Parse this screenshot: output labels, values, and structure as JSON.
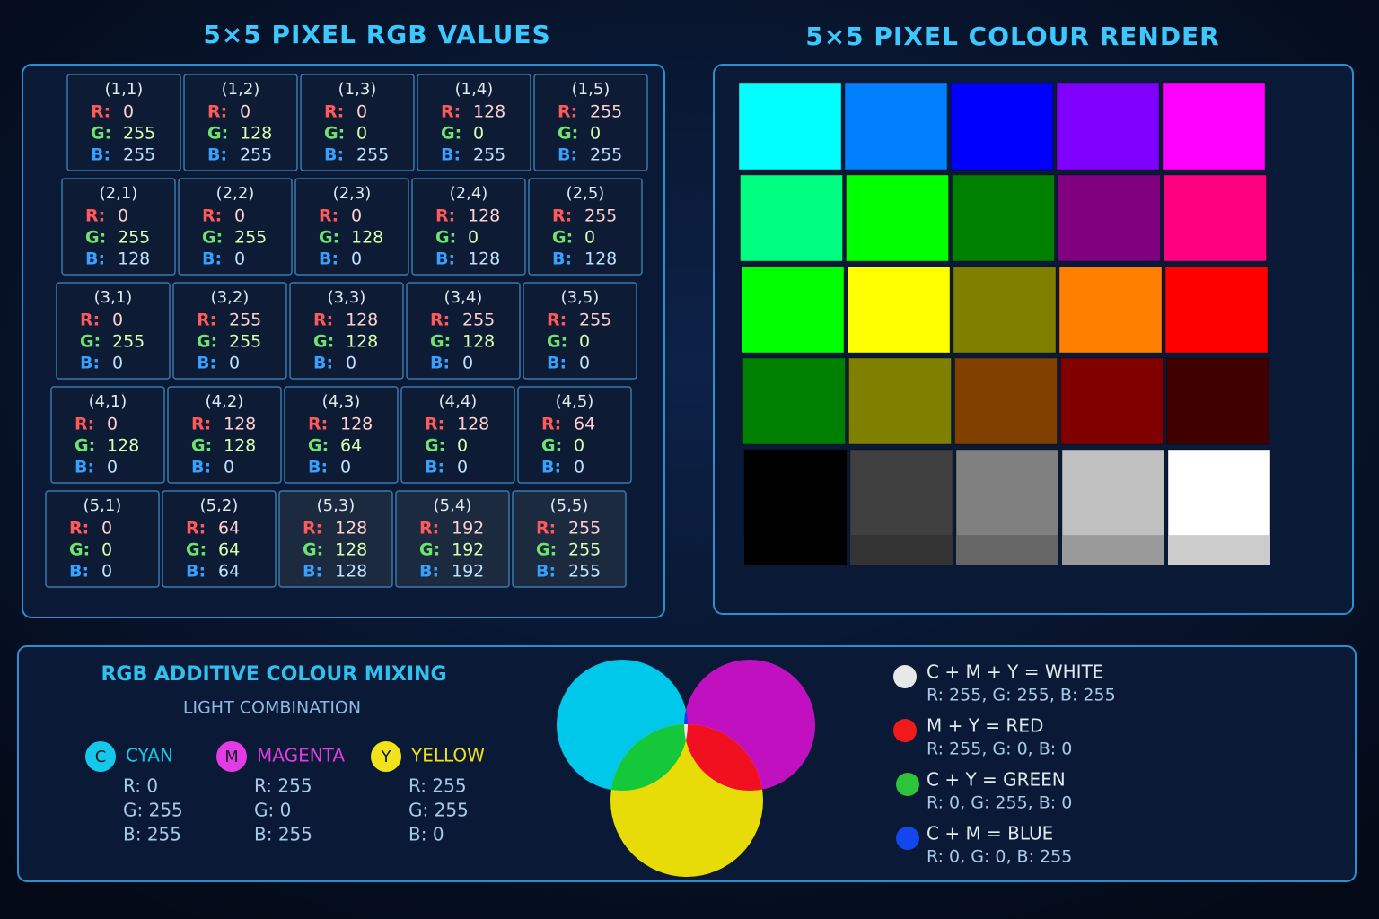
{
  "values_panel": {
    "title": "5×5 PIXEL RGB VALUES",
    "channel_labels": [
      "R:",
      "G:",
      "B:"
    ],
    "cells": [
      [
        {
          "label": "(1,1)",
          "rgb": [
            0,
            255,
            255
          ]
        },
        {
          "label": "(1,2)",
          "rgb": [
            0,
            128,
            255
          ]
        },
        {
          "label": "(1,3)",
          "rgb": [
            0,
            0,
            255
          ]
        },
        {
          "label": "(1,4)",
          "rgb": [
            128,
            0,
            255
          ]
        },
        {
          "label": "(1,5)",
          "rgb": [
            255,
            0,
            255
          ]
        }
      ],
      [
        {
          "label": "(2,1)",
          "rgb": [
            0,
            255,
            128
          ]
        },
        {
          "label": "(2,2)",
          "rgb": [
            0,
            255,
            0
          ]
        },
        {
          "label": "(2,3)",
          "rgb": [
            0,
            128,
            0
          ]
        },
        {
          "label": "(2,4)",
          "rgb": [
            128,
            0,
            128
          ]
        },
        {
          "label": "(2,5)",
          "rgb": [
            255,
            0,
            128
          ]
        }
      ],
      [
        {
          "label": "(3,1)",
          "rgb": [
            0,
            255,
            0
          ]
        },
        {
          "label": "(3,2)",
          "rgb": [
            255,
            255,
            0
          ]
        },
        {
          "label": "(3,3)",
          "rgb": [
            128,
            128,
            0
          ]
        },
        {
          "label": "(3,4)",
          "rgb": [
            255,
            128,
            0
          ]
        },
        {
          "label": "(3,5)",
          "rgb": [
            255,
            0,
            0
          ]
        }
      ],
      [
        {
          "label": "(4,1)",
          "rgb": [
            0,
            128,
            0
          ]
        },
        {
          "label": "(4,2)",
          "rgb": [
            128,
            128,
            0
          ]
        },
        {
          "label": "(4,3)",
          "rgb": [
            128,
            64,
            0
          ]
        },
        {
          "label": "(4,4)",
          "rgb": [
            128,
            0,
            0
          ]
        },
        {
          "label": "(4,5)",
          "rgb": [
            64,
            0,
            0
          ]
        }
      ],
      [
        {
          "label": "(5,1)",
          "rgb": [
            0,
            0,
            0
          ]
        },
        {
          "label": "(5,2)",
          "rgb": [
            64,
            64,
            64
          ]
        },
        {
          "label": "(5,3)",
          "rgb": [
            128,
            128,
            128
          ]
        },
        {
          "label": "(5,4)",
          "rgb": [
            192,
            192,
            192
          ]
        },
        {
          "label": "(5,5)",
          "rgb": [
            255,
            255,
            255
          ]
        }
      ]
    ]
  },
  "render_panel": {
    "title": "5×5 PIXEL COLOUR RENDER"
  },
  "mixing_panel": {
    "title": "RGB ADDITIVE COLOUR MIXING",
    "subtitle": "LIGHT COMBINATION",
    "primaries": [
      {
        "badge": "C",
        "name": "CYAN",
        "color": "#14c8ea",
        "lines": [
          "R: 0",
          "G: 255",
          "B: 255"
        ]
      },
      {
        "badge": "M",
        "name": "MAGENTA",
        "color": "#e43ce4",
        "lines": [
          "R: 255",
          "G: 0",
          "B: 255"
        ]
      },
      {
        "badge": "Y",
        "name": "YELLOW",
        "color": "#f2e21a",
        "lines": [
          "R: 255",
          "G: 255",
          "B: 0"
        ]
      }
    ],
    "combinations": [
      {
        "formula": "C + M + Y = WHITE",
        "rgb_text": "R: 255, G: 255, B: 255",
        "color": "#e8e8e8"
      },
      {
        "formula": "M + Y = RED",
        "rgb_text": "R: 255, G: 0, B: 0",
        "color": "#f01a1a"
      },
      {
        "formula": "C + Y = GREEN",
        "rgb_text": "R: 0, G: 255, B: 0",
        "color": "#2ec43a"
      },
      {
        "formula": "C + M = BLUE",
        "rgb_text": "R: 0, G: 0, B: 255",
        "color": "#1446ee"
      }
    ]
  }
}
